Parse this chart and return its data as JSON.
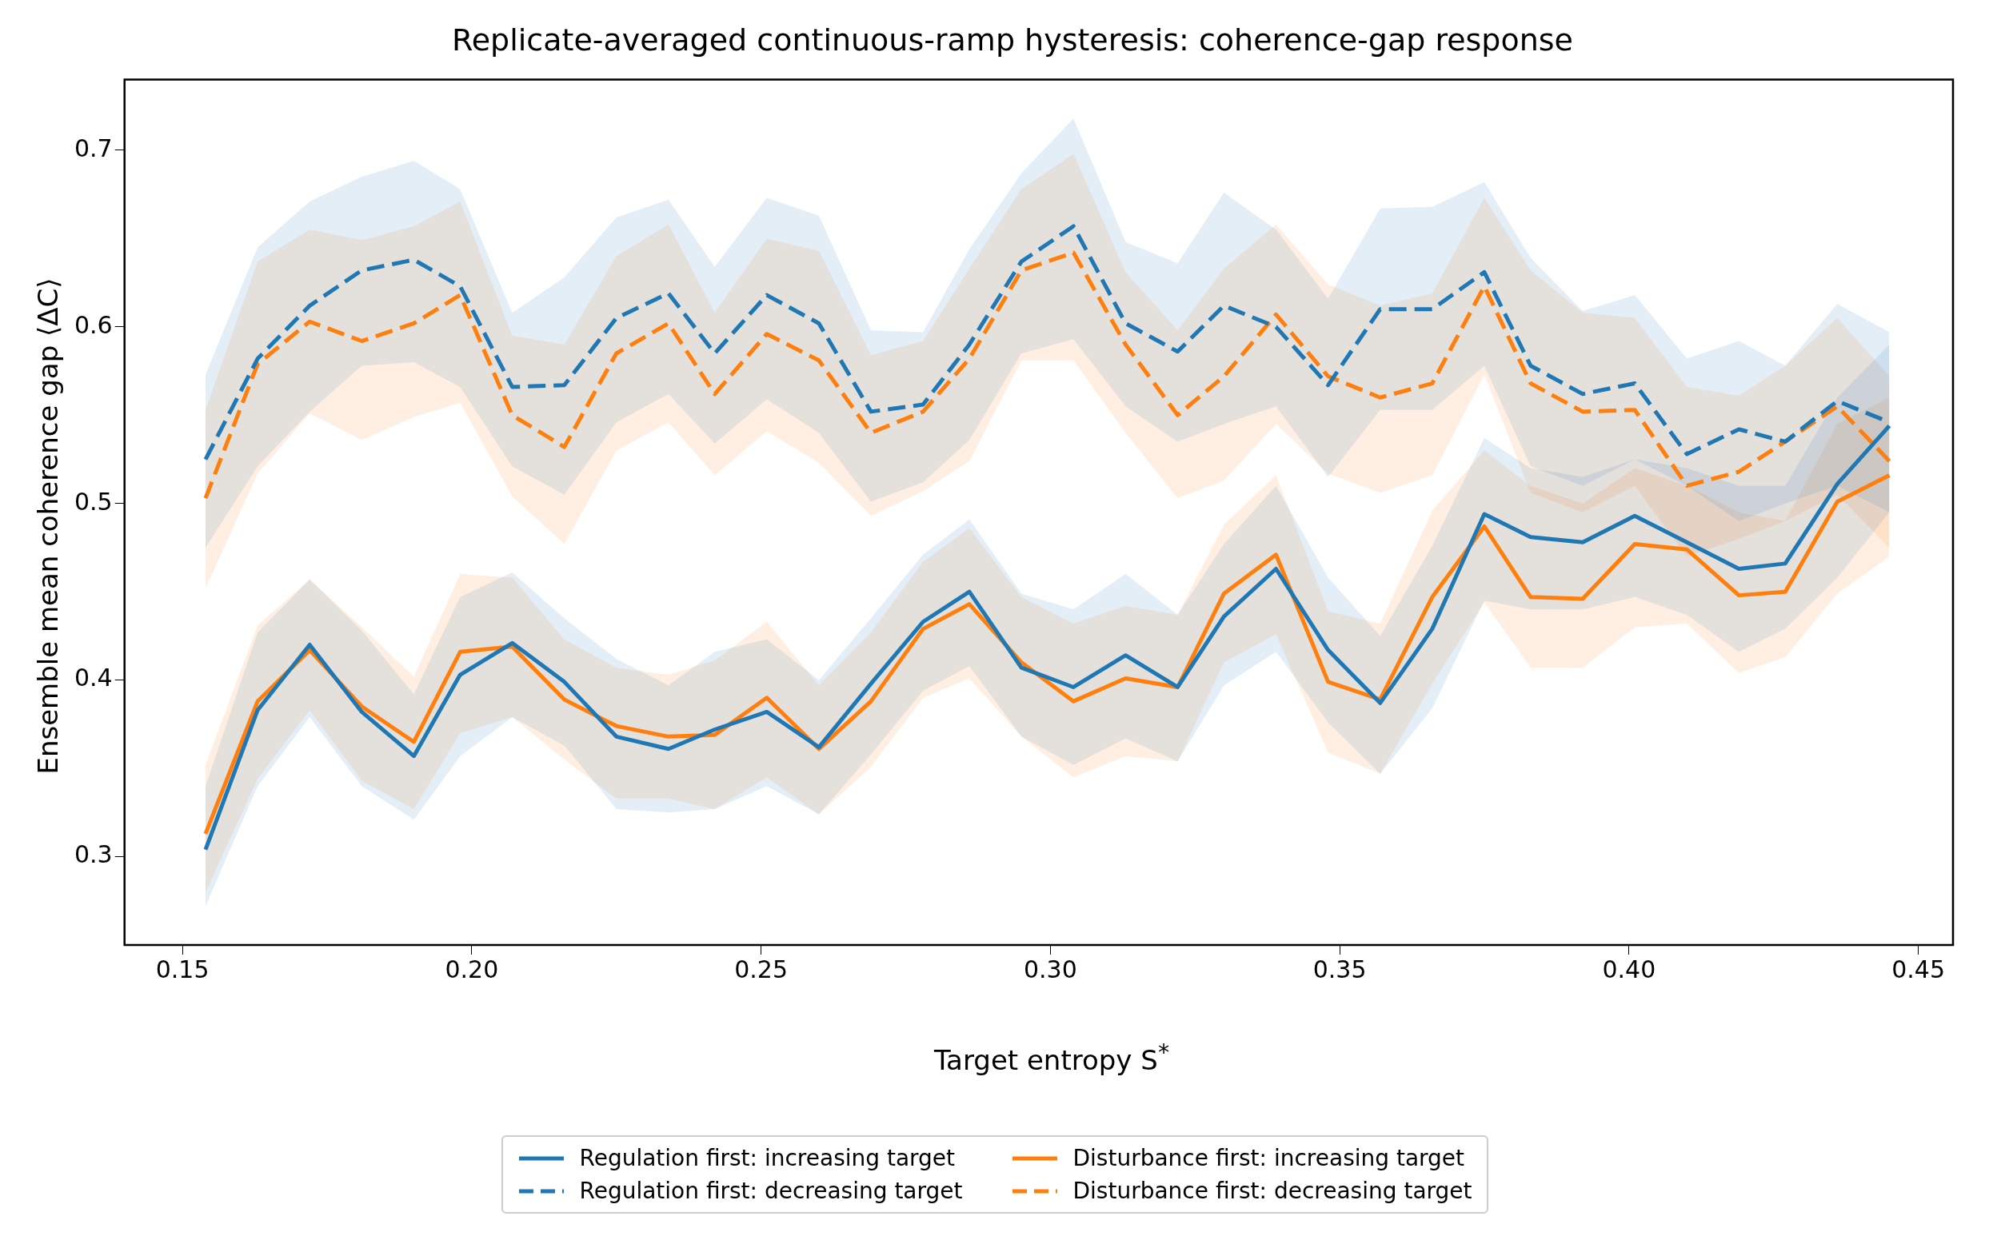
{
  "chart_data": {
    "type": "line",
    "title": "Replicate-averaged continuous-ramp hysteresis: coherence-gap response",
    "xlabel": "Target entropy S$^{*}$",
    "ylabel": "Ensemble mean coherence gap ⟨ΔC⟩",
    "x": [
      0.154,
      0.163,
      0.172,
      0.181,
      0.19,
      0.198,
      0.207,
      0.216,
      0.225,
      0.234,
      0.242,
      0.251,
      0.26,
      0.269,
      0.278,
      0.286,
      0.295,
      0.304,
      0.313,
      0.322,
      0.33,
      0.339,
      0.348,
      0.357,
      0.366,
      0.375,
      0.383,
      0.392,
      0.401,
      0.41,
      0.419,
      0.427,
      0.436,
      0.445
    ],
    "series": [
      {
        "name": "Regulation first: increasing target",
        "color": "#1f77b4",
        "line_style": "solid",
        "values": [
          0.304,
          0.383,
          0.42,
          0.382,
          0.357,
          0.403,
          0.421,
          0.399,
          0.368,
          0.361,
          0.372,
          0.382,
          0.362,
          0.398,
          0.433,
          0.45,
          0.407,
          0.396,
          0.414,
          0.396,
          0.436,
          0.463,
          0.417,
          0.387,
          0.429,
          0.494,
          0.481,
          0.478,
          0.493,
          0.478,
          0.463,
          0.466,
          0.511,
          0.544
        ],
        "upper": [
          0.34,
          0.427,
          0.457,
          0.428,
          0.392,
          0.447,
          0.461,
          0.435,
          0.412,
          0.397,
          0.416,
          0.423,
          0.4,
          0.435,
          0.471,
          0.491,
          0.449,
          0.44,
          0.46,
          0.437,
          0.477,
          0.51,
          0.458,
          0.425,
          0.476,
          0.537,
          0.52,
          0.515,
          0.525,
          0.52,
          0.51,
          0.51,
          0.56,
          0.59
        ],
        "lower": [
          0.272,
          0.34,
          0.379,
          0.34,
          0.321,
          0.357,
          0.379,
          0.363,
          0.327,
          0.325,
          0.327,
          0.34,
          0.324,
          0.358,
          0.394,
          0.408,
          0.368,
          0.352,
          0.367,
          0.354,
          0.397,
          0.416,
          0.376,
          0.347,
          0.384,
          0.445,
          0.44,
          0.44,
          0.447,
          0.437,
          0.416,
          0.429,
          0.458,
          0.495
        ]
      },
      {
        "name": "Regulation first: decreasing target",
        "color": "#1f77b4",
        "line_style": "dashed",
        "values": [
          0.525,
          0.582,
          0.612,
          0.632,
          0.638,
          0.623,
          0.566,
          0.567,
          0.605,
          0.619,
          0.585,
          0.618,
          0.602,
          0.552,
          0.556,
          0.59,
          0.637,
          0.657,
          0.602,
          0.586,
          0.612,
          0.6,
          0.567,
          0.61,
          0.61,
          0.631,
          0.578,
          0.562,
          0.568,
          0.528,
          0.542,
          0.535,
          0.558,
          0.546
        ],
        "upper": [
          0.573,
          0.645,
          0.671,
          0.685,
          0.694,
          0.678,
          0.608,
          0.628,
          0.662,
          0.672,
          0.634,
          0.673,
          0.663,
          0.598,
          0.597,
          0.644,
          0.687,
          0.718,
          0.648,
          0.636,
          0.676,
          0.655,
          0.616,
          0.667,
          0.668,
          0.682,
          0.639,
          0.609,
          0.618,
          0.582,
          0.592,
          0.578,
          0.613,
          0.597
        ],
        "lower": [
          0.475,
          0.521,
          0.552,
          0.578,
          0.58,
          0.566,
          0.521,
          0.505,
          0.546,
          0.562,
          0.534,
          0.559,
          0.54,
          0.501,
          0.512,
          0.536,
          0.585,
          0.593,
          0.555,
          0.535,
          0.545,
          0.555,
          0.515,
          0.553,
          0.553,
          0.578,
          0.521,
          0.51,
          0.525,
          0.51,
          0.49,
          0.5,
          0.51,
          0.495
        ]
      },
      {
        "name": "Disturbance first: increasing target",
        "color": "#ff7f0e",
        "line_style": "solid",
        "values": [
          0.313,
          0.388,
          0.417,
          0.385,
          0.365,
          0.416,
          0.419,
          0.389,
          0.374,
          0.368,
          0.369,
          0.39,
          0.361,
          0.388,
          0.429,
          0.443,
          0.41,
          0.388,
          0.401,
          0.396,
          0.449,
          0.471,
          0.399,
          0.389,
          0.447,
          0.487,
          0.447,
          0.446,
          0.477,
          0.474,
          0.448,
          0.45,
          0.501,
          0.516
        ],
        "upper": [
          0.352,
          0.431,
          0.457,
          0.43,
          0.402,
          0.46,
          0.458,
          0.423,
          0.407,
          0.403,
          0.411,
          0.433,
          0.397,
          0.427,
          0.467,
          0.486,
          0.447,
          0.432,
          0.442,
          0.437,
          0.488,
          0.516,
          0.439,
          0.432,
          0.496,
          0.53,
          0.51,
          0.5,
          0.52,
          0.51,
          0.495,
          0.49,
          0.545,
          0.56
        ],
        "lower": [
          0.28,
          0.344,
          0.383,
          0.343,
          0.327,
          0.37,
          0.379,
          0.355,
          0.333,
          0.333,
          0.327,
          0.345,
          0.324,
          0.351,
          0.39,
          0.401,
          0.368,
          0.345,
          0.357,
          0.354,
          0.41,
          0.426,
          0.359,
          0.347,
          0.398,
          0.444,
          0.407,
          0.407,
          0.43,
          0.432,
          0.404,
          0.413,
          0.449,
          0.47
        ]
      },
      {
        "name": "Disturbance first: decreasing target",
        "color": "#ff7f0e",
        "line_style": "dashed",
        "values": [
          0.503,
          0.579,
          0.603,
          0.592,
          0.602,
          0.618,
          0.55,
          0.532,
          0.585,
          0.602,
          0.562,
          0.596,
          0.581,
          0.54,
          0.552,
          0.582,
          0.632,
          0.642,
          0.59,
          0.55,
          0.572,
          0.607,
          0.572,
          0.56,
          0.568,
          0.623,
          0.568,
          0.552,
          0.553,
          0.51,
          0.518,
          0.535,
          0.555,
          0.524
        ],
        "upper": [
          0.553,
          0.637,
          0.655,
          0.649,
          0.657,
          0.671,
          0.595,
          0.59,
          0.64,
          0.658,
          0.608,
          0.65,
          0.643,
          0.584,
          0.592,
          0.633,
          0.678,
          0.698,
          0.631,
          0.598,
          0.633,
          0.658,
          0.624,
          0.612,
          0.619,
          0.673,
          0.632,
          0.608,
          0.605,
          0.566,
          0.561,
          0.578,
          0.605,
          0.572
        ],
        "lower": [
          0.452,
          0.517,
          0.551,
          0.536,
          0.549,
          0.557,
          0.504,
          0.477,
          0.53,
          0.546,
          0.516,
          0.541,
          0.523,
          0.493,
          0.507,
          0.524,
          0.581,
          0.581,
          0.54,
          0.503,
          0.513,
          0.545,
          0.517,
          0.506,
          0.516,
          0.573,
          0.506,
          0.495,
          0.51,
          0.47,
          0.48,
          0.49,
          0.505,
          0.475
        ]
      }
    ],
    "xlim": [
      0.14,
      0.456
    ],
    "xticks": [
      {
        "value": 0.15,
        "label": "0.15"
      },
      {
        "value": 0.2,
        "label": "0.20"
      },
      {
        "value": 0.25,
        "label": "0.25"
      },
      {
        "value": 0.3,
        "label": "0.30"
      },
      {
        "value": 0.35,
        "label": "0.35"
      },
      {
        "value": 0.4,
        "label": "0.40"
      },
      {
        "value": 0.45,
        "label": "0.45"
      }
    ],
    "ylim": [
      0.25,
      0.74
    ],
    "yticks": [
      0.3,
      0.4,
      0.5,
      0.6,
      0.7
    ],
    "grid": false,
    "legend": "bottom",
    "marker": "none"
  }
}
